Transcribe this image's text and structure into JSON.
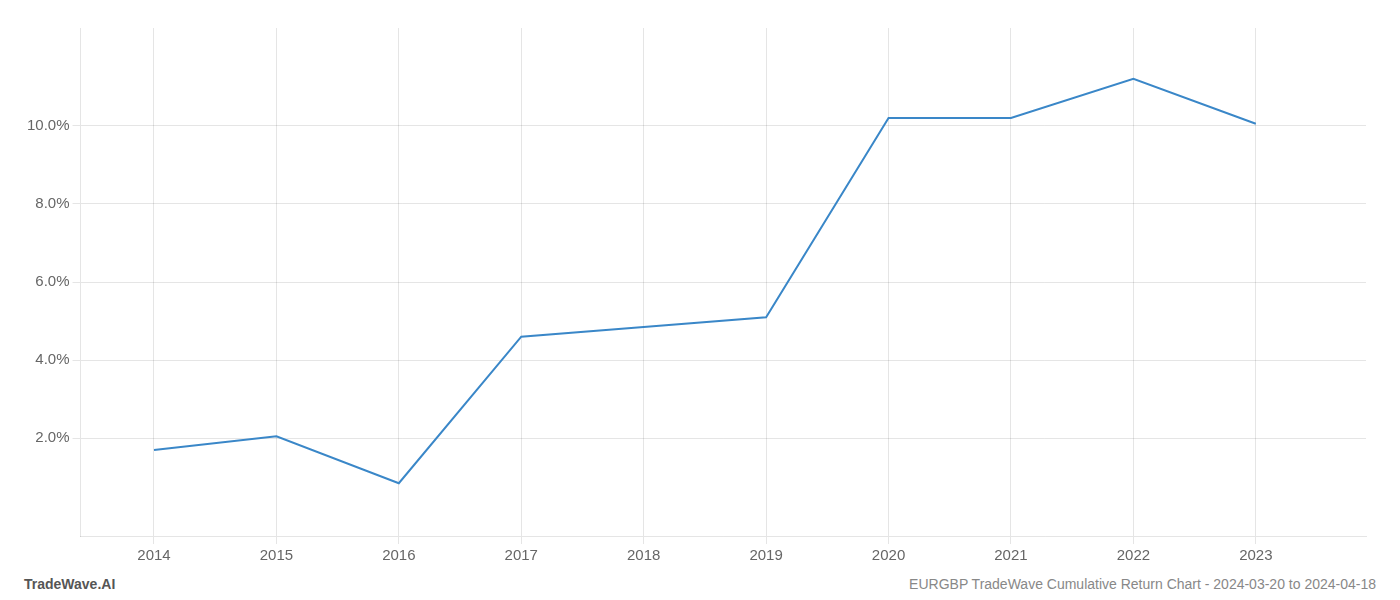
{
  "chart_data": {
    "type": "line",
    "x": [
      2014,
      2015,
      2016,
      2017,
      2018,
      2019,
      2020,
      2021,
      2022,
      2023
    ],
    "values": [
      1.7,
      2.05,
      0.85,
      4.6,
      4.85,
      5.1,
      10.2,
      10.2,
      11.2,
      10.05
    ],
    "color": "#3a87c8",
    "xlim": [
      2013.4,
      2023.9
    ],
    "xticks": [
      2014,
      2015,
      2016,
      2017,
      2018,
      2019,
      2020,
      2021,
      2022,
      2023
    ],
    "ylim": [
      -0.5,
      12.5
    ],
    "yticks": [
      {
        "value": 2.0,
        "label": "2.0%"
      },
      {
        "value": 4.0,
        "label": "4.0%"
      },
      {
        "value": 6.0,
        "label": "6.0%"
      },
      {
        "value": 8.0,
        "label": "8.0%"
      },
      {
        "value": 10.0,
        "label": "10.0%"
      }
    ],
    "grid": true,
    "annotations": [
      "TradeWave.AI",
      "EURGBP TradeWave Cumulative Return Chart - 2024-03-20 to 2024-04-18"
    ]
  }
}
